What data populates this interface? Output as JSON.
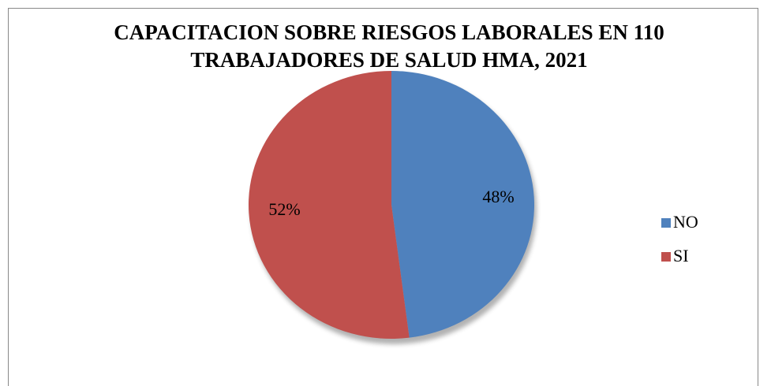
{
  "chart_data": {
    "type": "pie",
    "title": "CAPACITACION SOBRE RIESGOS LABORALES EN 110 TRABAJADORES DE SALUD HMA, 2021",
    "categories": [
      "NO",
      "SI"
    ],
    "values": [
      48,
      52
    ],
    "value_labels": [
      "48%",
      "52%"
    ],
    "colors": [
      "#4f81bd",
      "#c0504d"
    ],
    "legend": "right"
  }
}
